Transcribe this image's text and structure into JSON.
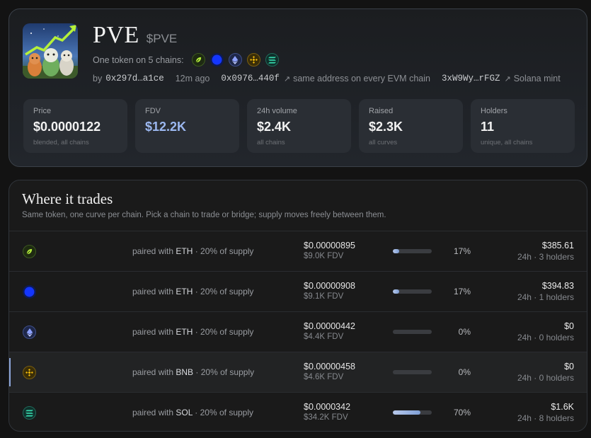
{
  "token": {
    "name": "PVE",
    "ticker": "$PVE",
    "chains_label": "One token on 5 chains:",
    "by_label": "by",
    "creator": "0x297d…a1ce",
    "age": "12m ago",
    "evm_address": "0x0976…440f",
    "evm_note": "same address on every EVM chain",
    "solana_address": "3xW9Wy…rFGZ",
    "solana_note": "Solana mint"
  },
  "stats": [
    {
      "label": "Price",
      "value": "$0.0000122",
      "sub": "blended, all chains"
    },
    {
      "label": "FDV",
      "value": "$12.2K",
      "sub": ""
    },
    {
      "label": "24h volume",
      "value": "$2.4K",
      "sub": "all chains"
    },
    {
      "label": "Raised",
      "value": "$2.3K",
      "sub": "all curves"
    },
    {
      "label": "Holders",
      "value": "11",
      "sub": "unique, all chains"
    }
  ],
  "trades": {
    "title": "Where it trades",
    "subtitle": "Same token, one curve per chain. Pick a chain to trade or bridge; supply moves freely between them.",
    "rows": [
      {
        "icon": "leaf-chain-icon",
        "paired_prefix": "paired with",
        "pair": "ETH",
        "supply": "· 20% of supply",
        "price": "$0.00000895",
        "fdv": "$9.0K FDV",
        "progress": 17,
        "pct": "17%",
        "volume": "$385.61",
        "holders": "24h · 3 holders"
      },
      {
        "icon": "blue-circle-chain-icon",
        "paired_prefix": "paired with",
        "pair": "ETH",
        "supply": "· 20% of supply",
        "price": "$0.00000908",
        "fdv": "$9.1K FDV",
        "progress": 17,
        "pct": "17%",
        "volume": "$394.83",
        "holders": "24h · 1 holders"
      },
      {
        "icon": "ethereum-icon",
        "paired_prefix": "paired with",
        "pair": "ETH",
        "supply": "· 20% of supply",
        "price": "$0.00000442",
        "fdv": "$4.4K FDV",
        "progress": 0,
        "pct": "0%",
        "volume": "$0",
        "holders": "24h · 0 holders"
      },
      {
        "icon": "bnb-icon",
        "paired_prefix": "paired with",
        "pair": "BNB",
        "supply": "· 20% of supply",
        "price": "$0.00000458",
        "fdv": "$4.6K FDV",
        "progress": 0,
        "pct": "0%",
        "volume": "$0",
        "holders": "24h · 0 holders"
      },
      {
        "icon": "solana-icon",
        "paired_prefix": "paired with",
        "pair": "SOL",
        "supply": "· 20% of supply",
        "price": "$0.0000342",
        "fdv": "$34.2K FDV",
        "progress": 70,
        "pct": "70%",
        "volume": "$1.6K",
        "holders": "24h · 8 holders"
      }
    ]
  },
  "colors": {
    "accent": "#9cb8f0",
    "leaf": "#b6f03a",
    "base_blue": "#1436ff",
    "eth": "#8ea2ff",
    "bnb": "#f0b90b",
    "sol": "#35d3a8"
  }
}
